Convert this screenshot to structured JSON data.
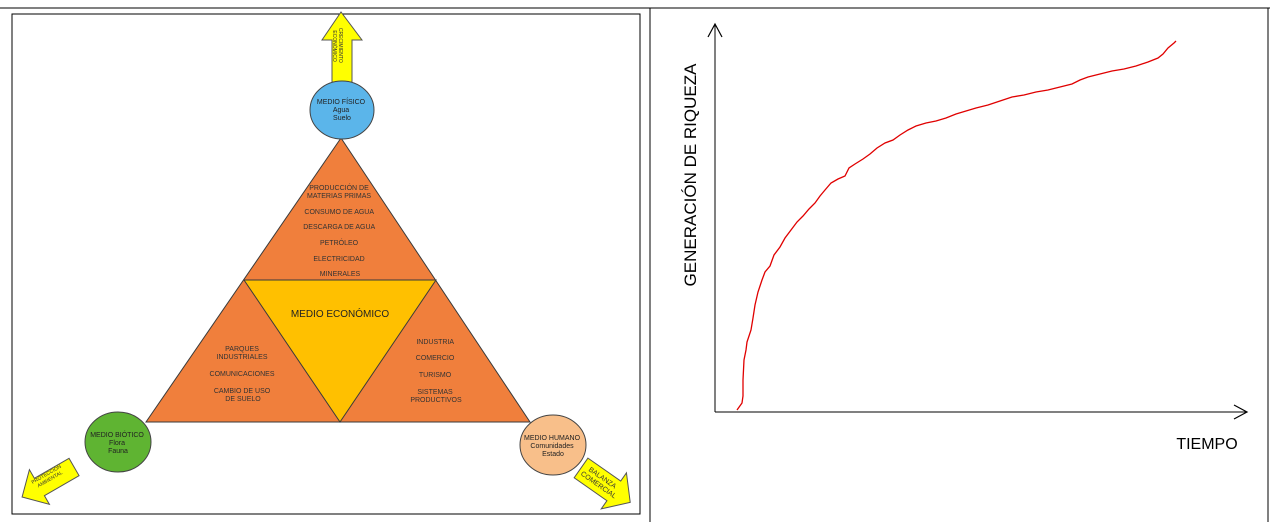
{
  "left_diagram": {
    "top_arrow_label": [
      "CRECIMIENTO",
      "ECONÓMICO"
    ],
    "bottom_left_arrow_label": [
      "PROTECCIÓN",
      "AMBIENTAL"
    ],
    "bottom_right_arrow_label": [
      "BALANZA",
      "COMERCIAL"
    ],
    "medio_fisico": [
      "MEDIO FÍSICO",
      "Agua",
      "Suelo"
    ],
    "medio_biotico": [
      "MEDIO BIÓTICO",
      "Flora",
      "Fauna"
    ],
    "medio_humano": [
      "MEDIO HUMANO",
      "Comunidades",
      "Estado"
    ],
    "top_triangle_items": [
      "PRODUCCIÓN DE",
      "MATERIAS PRIMAS",
      "CONSUMO DE AGUA",
      "DESCARGA DE AGUA",
      "PETRÓLEO",
      "ELECTRICIDAD",
      "MINERALES"
    ],
    "center_label": "MEDIO ECONÓMICO",
    "left_triangle_items": [
      "PARQUES",
      "INDUSTRIALES",
      "COMUNICACIONES",
      "CAMBIO DE USO",
      "DE SUELO"
    ],
    "right_triangle_items": [
      "INDUSTRIA",
      "COMERCIO",
      "TURISMO",
      "SISTEMAS",
      "PRODUCTIVOS"
    ],
    "colors": {
      "triangle_orange": "#f07f3c",
      "center_yellow": "#ffc000",
      "arrow_yellow": "#ffff00",
      "circle_blue": "#5bb5ea",
      "circle_green": "#5fb432",
      "circle_peach": "#f8bf8a"
    }
  },
  "right_chart": {
    "ylabel": "GENERACIÓN DE RIQUEZA",
    "xlabel": "TIEMPO",
    "curve_color": "#e00000"
  }
}
